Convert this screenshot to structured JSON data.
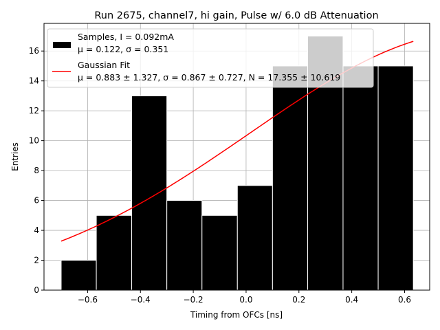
{
  "chart_data": {
    "type": "bar",
    "title": "Run 2675, channel7, hi gain, Pulse w/ 6.0 dB Attenuation",
    "xlabel": "Timing from OFCs [ns]",
    "ylabel": "Entries",
    "xlim": [
      -0.765,
      0.695
    ],
    "ylim": [
      0,
      17.85
    ],
    "xticks": [
      -0.6,
      -0.4,
      -0.2,
      0.0,
      0.2,
      0.4,
      0.6
    ],
    "xtick_labels": [
      "−0.6",
      "−0.4",
      "−0.2",
      "0.0",
      "0.2",
      "0.4",
      "0.6"
    ],
    "yticks": [
      0,
      2,
      4,
      6,
      8,
      10,
      12,
      14,
      16
    ],
    "ytick_labels": [
      "0",
      "2",
      "4",
      "6",
      "8",
      "10",
      "12",
      "14",
      "16"
    ],
    "grid": true,
    "legend_position": "top-left",
    "histogram": {
      "name": "Samples, I = 0.092mA",
      "stats_line": "μ = 0.122, σ = 0.351",
      "bin_edges": [
        -0.7,
        -0.567,
        -0.433,
        -0.3,
        -0.167,
        -0.033,
        0.1,
        0.233,
        0.367,
        0.5,
        0.633
      ],
      "counts": [
        2,
        5,
        13,
        6,
        5,
        7,
        15,
        17,
        15,
        15
      ]
    },
    "fit": {
      "name": "Gaussian Fit",
      "params_line": "μ = 0.883 ± 1.327, σ = 0.867 ± 0.727, N = 17.355 ± 10.619",
      "mu": 0.883,
      "sigma": 0.867,
      "N": 17.355,
      "x_range": [
        -0.7,
        0.633
      ]
    },
    "colors": {
      "bar": "#000000",
      "bar_edge": "#ffffff",
      "fit": "#ff0000",
      "grid": "#b0b0b0",
      "legend_bg": "#ffffff",
      "legend_border": "#cccccc"
    }
  }
}
